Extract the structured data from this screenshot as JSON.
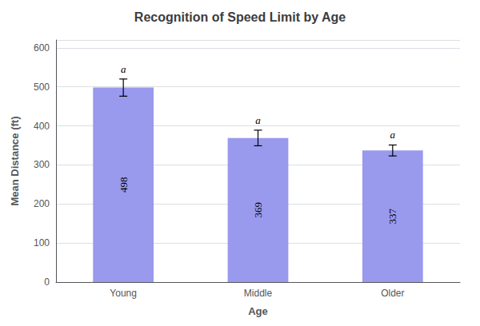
{
  "chart_data": {
    "type": "bar",
    "title": "Recognition of Speed Limit by Age",
    "xlabel": "Age",
    "ylabel": "Mean Distance (ft)",
    "categories": [
      "Young",
      "Middle",
      "Older"
    ],
    "values": [
      498,
      369,
      337
    ],
    "errors": [
      22,
      20,
      14
    ],
    "color": "#9999ee",
    "annotations": [
      {
        "category": "Young",
        "text": "a"
      },
      {
        "category": "Middle",
        "text": "a"
      },
      {
        "category": "Older",
        "text": "a"
      }
    ],
    "ylim": [
      0,
      620
    ],
    "yticks": [
      0,
      100,
      200,
      300,
      400,
      500,
      600
    ],
    "grid": true,
    "data_labels": true
  }
}
